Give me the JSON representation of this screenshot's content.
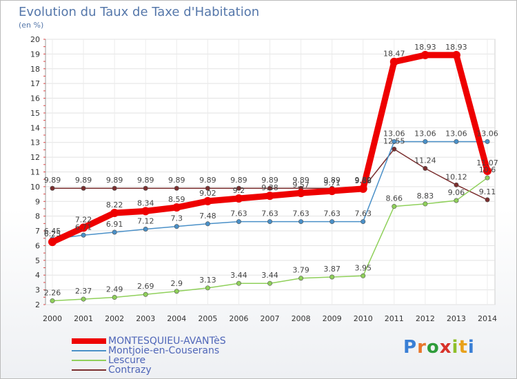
{
  "title": "Evolution du Taux de Taxe d'Habitation",
  "unit": "(en %)",
  "logo": {
    "text": "Proxiti",
    "letters": [
      "P",
      "r",
      "o",
      "x",
      "i",
      "t",
      "i"
    ],
    "colors": [
      "#3a7fd5",
      "#e8762a",
      "#2e9c3a",
      "#d8322a",
      "#8fbf2a",
      "#e8a11a",
      "#3a7fd5"
    ]
  },
  "chart_data": {
    "type": "line",
    "x": [
      2000,
      2001,
      2002,
      2003,
      2004,
      2005,
      2006,
      2007,
      2008,
      2009,
      2010,
      2011,
      2012,
      2013,
      2014
    ],
    "ylim": [
      2,
      20
    ],
    "yticks": [
      2,
      3,
      4,
      5,
      6,
      7,
      8,
      9,
      10,
      11,
      12,
      13,
      14,
      15,
      16,
      17,
      18,
      19,
      20
    ],
    "grid": true,
    "legend_position": "bottom-left",
    "series": [
      {
        "name": "Contrazy",
        "color": "#7a2e2e",
        "values": [
          9.89,
          9.89,
          9.89,
          9.89,
          9.89,
          9.89,
          9.89,
          9.89,
          9.89,
          9.89,
          9.89,
          12.55,
          11.24,
          10.12,
          9.11
        ],
        "labels": [
          "9.89",
          "9.89",
          "9.89",
          "9.89",
          "9.89",
          "9.89",
          "9.89",
          "9.89",
          "9.89",
          "9.89",
          "9.89",
          "12.55",
          "11.24",
          "10.12",
          "9.11"
        ]
      },
      {
        "name": "Lescure",
        "color": "#8fd05a",
        "values": [
          2.26,
          2.37,
          2.49,
          2.69,
          2.9,
          3.13,
          3.44,
          3.44,
          3.79,
          3.87,
          3.95,
          8.66,
          8.83,
          9.06,
          10.6
        ],
        "labels": [
          "2.26",
          "2.37",
          "2.49",
          "2.69",
          "2.9",
          "3.13",
          "3.44",
          "3.44",
          "3.79",
          "3.87",
          "3.95",
          "8.66",
          "8.83",
          "9.06",
          "10.6"
        ]
      },
      {
        "name": "Montjoie-en-Couserans",
        "color": "#4a90c8",
        "values": [
          6.45,
          6.71,
          6.91,
          7.12,
          7.3,
          7.48,
          7.63,
          7.63,
          7.63,
          7.63,
          7.63,
          13.06,
          13.06,
          13.06,
          13.06
        ],
        "labels": [
          "6.45",
          "6.71",
          "6.91",
          "7.12",
          "7.3",
          "7.48",
          "7.63",
          "7.63",
          "7.63",
          "7.63",
          "7.63",
          "13.06",
          "13.06",
          "13.06",
          "13.06"
        ]
      },
      {
        "name": "MONTESQUIEU-AVANTèS",
        "color": "#ee0000",
        "values": [
          6.25,
          7.22,
          8.22,
          8.34,
          8.59,
          9.02,
          9.2,
          9.38,
          9.57,
          9.71,
          9.86,
          18.47,
          18.93,
          18.93,
          11.07
        ],
        "labels": [
          "6.25",
          "7.22",
          "8.22",
          "8.34",
          "8.59",
          "9.02",
          "9.2",
          "9.38",
          "9.57",
          "9.71",
          "9.86",
          "18.47",
          "18.93",
          "18.93",
          "11.07"
        ]
      }
    ],
    "legend": [
      "MONTESQUIEU-AVANTèS",
      "Montjoie-en-Couserans",
      "Lescure",
      "Contrazy"
    ]
  }
}
